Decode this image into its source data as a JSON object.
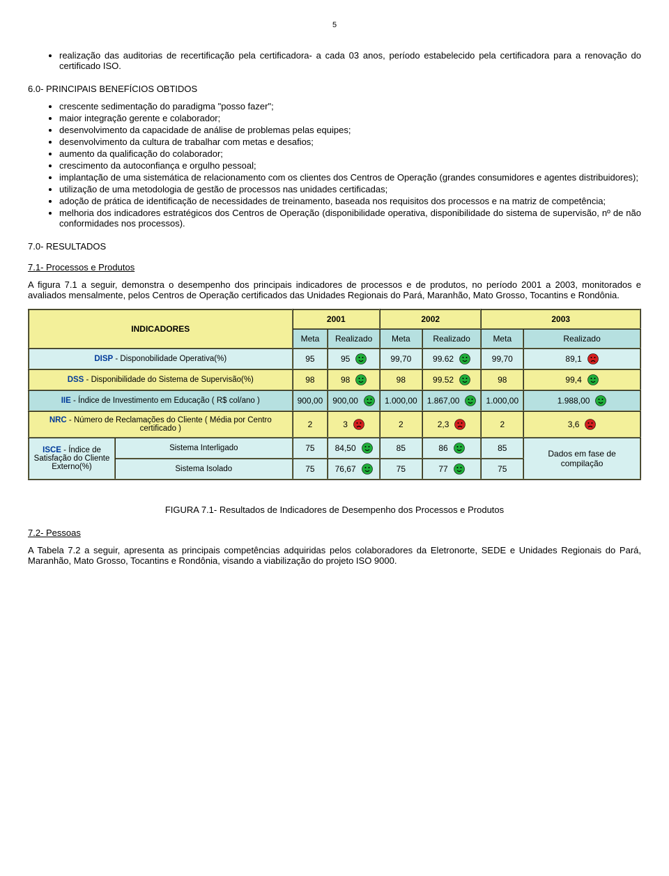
{
  "page_number": "5",
  "top_bullet": "realização das auditorias de recertificação pela certificadora- a cada 03 anos, período estabelecido pela certificadora para a renovação do certificado ISO.",
  "section6_title": "6.0- PRINCIPAIS BENEFÍCIOS OBTIDOS",
  "benefits": [
    "crescente sedimentação do paradigma \"posso fazer\";",
    "maior integração gerente e colaborador;",
    "desenvolvimento da capacidade de análise de problemas pelas equipes;",
    "desenvolvimento da cultura de trabalhar com metas e desafios;",
    "aumento da qualificação do colaborador;",
    "crescimento da autoconfiança e orgulho pessoal;",
    "implantação de uma sistemática de relacionamento com os clientes dos Centros de Operação (grandes consumidores e agentes distribuidores);",
    "utilização  de uma metodologia de gestão de processos nas unidades certificadas;",
    "adoção de prática de identificação de necessidades de treinamento, baseada nos requisitos dos processos e na matriz de competência;",
    "melhoria dos indicadores estratégicos dos Centros de Operação (disponibilidade operativa, disponibilidade do sistema de supervisão, nº de não conformidades nos processos)."
  ],
  "section7_title": "7.0- RESULTADOS",
  "section71_title": "7.1- Processos e Produtos",
  "section71_para": "A figura 7.1 a seguir, demonstra o desempenho dos principais indicadores de processos e de produtos, no período 2001 a 2003, monitorados e avaliados mensalmente, pelos Centros de Operação certificados das Unidades Regionais do Pará, Maranhão, Mato Grosso, Tocantins e Rondônia.",
  "table": {
    "indicadores_label": "INDICADORES",
    "years": [
      "2001",
      "2002",
      "2003"
    ],
    "sub": [
      "Meta",
      "Realizado"
    ],
    "rows": [
      {
        "label_blue": "DISP",
        "label_rest": " - Disponobilidade Operativa(%)",
        "cells": [
          {
            "v": "95",
            "face": ""
          },
          {
            "v": "95",
            "face": "happy"
          },
          {
            "v": "99,70",
            "face": ""
          },
          {
            "v": "99.62",
            "face": "happy"
          },
          {
            "v": "99,70",
            "face": ""
          },
          {
            "v": "89,1",
            "face": "sad"
          }
        ]
      },
      {
        "label_blue": "DSS",
        "label_rest": " - Disponibilidade do Sistema de Supervisão(%)",
        "cells": [
          {
            "v": "98",
            "face": ""
          },
          {
            "v": "98",
            "face": "happy"
          },
          {
            "v": "98",
            "face": ""
          },
          {
            "v": "99.52",
            "face": "happy"
          },
          {
            "v": "98",
            "face": ""
          },
          {
            "v": "99,4",
            "face": "happy"
          }
        ]
      },
      {
        "label_blue": "IIE",
        "label_rest": " - Índice de Investimento em Educação ( R$ col/ano )",
        "cells": [
          {
            "v": "900,00",
            "face": ""
          },
          {
            "v": "900,00",
            "face": "happy"
          },
          {
            "v": "1.000,00",
            "face": ""
          },
          {
            "v": "1.867,00",
            "face": "happy"
          },
          {
            "v": "1.000,00",
            "face": ""
          },
          {
            "v": "1.988,00",
            "face": "happy"
          }
        ]
      },
      {
        "label_blue": "NRC",
        "label_rest": " - Número de Reclamações do Cliente ( Média por Centro certificado )",
        "cells": [
          {
            "v": "2",
            "face": ""
          },
          {
            "v": "3",
            "face": "sad"
          },
          {
            "v": "2",
            "face": ""
          },
          {
            "v": "2,3",
            "face": "sad"
          },
          {
            "v": "2",
            "face": ""
          },
          {
            "v": "3,6",
            "face": "sad"
          }
        ]
      }
    ],
    "isce_label_blue": "ISCE",
    "isce_label_rest": " - Índice de Satisfação do Cliente Externo(%)",
    "isce_sub1": "Sistema Interligado",
    "isce_sub2": "Sistema Isolado",
    "isce_row1": [
      {
        "v": "75",
        "face": ""
      },
      {
        "v": "84,50",
        "face": "happy"
      },
      {
        "v": "85",
        "face": ""
      },
      {
        "v": "86",
        "face": "happy"
      },
      {
        "v": "85",
        "face": ""
      }
    ],
    "isce_row2": [
      {
        "v": "75",
        "face": ""
      },
      {
        "v": "76,67",
        "face": "happy"
      },
      {
        "v": "75",
        "face": ""
      },
      {
        "v": "77",
        "face": "happy"
      },
      {
        "v": "75",
        "face": ""
      }
    ],
    "isce_merged": "Dados em fase de compilação",
    "colors": {
      "yellow": "#f3f09a",
      "teal_light": "#d6f0f0",
      "teal": "#b6e0e0",
      "happy": "#1fae3a",
      "sad": "#d41f1f"
    }
  },
  "figure_caption": "FIGURA 7.1- Resultados de Indicadores de Desempenho dos Processos e Produtos",
  "section72_title": "7.2- Pessoas",
  "section72_para": "A Tabela 7.2 a seguir, apresenta as principais competências adquiridas pelos colaboradores da Eletronorte, SEDE e Unidades Regionais do Pará, Maranhão, Mato Grosso, Tocantins e Rondônia, visando a viabilização do projeto ISO 9000."
}
